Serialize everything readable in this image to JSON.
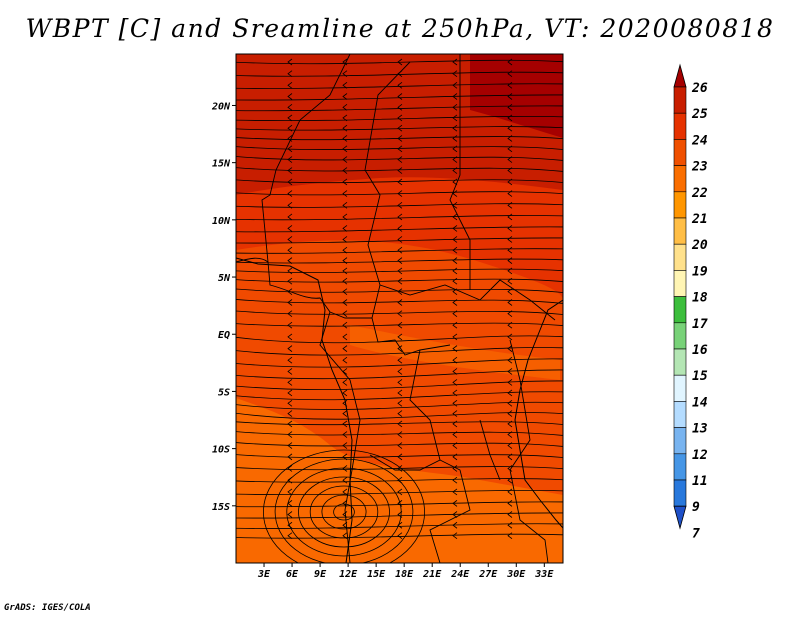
{
  "title": "WBPT [C] and Sreamline at 250hPa, VT: 2020080818",
  "credit": "GrADS: IGES/COLA",
  "map": {
    "lon_range": [
      0,
      35
    ],
    "lat_range": [
      -20,
      24.5
    ],
    "lon_ticks": [
      {
        "value": 3,
        "label": "3E"
      },
      {
        "value": 6,
        "label": "6E"
      },
      {
        "value": 9,
        "label": "9E"
      },
      {
        "value": 12,
        "label": "12E"
      },
      {
        "value": 15,
        "label": "15E"
      },
      {
        "value": 18,
        "label": "18E"
      },
      {
        "value": 21,
        "label": "21E"
      },
      {
        "value": 24,
        "label": "24E"
      },
      {
        "value": 27,
        "label": "27E"
      },
      {
        "value": 30,
        "label": "30E"
      },
      {
        "value": 33,
        "label": "33E"
      }
    ],
    "lat_ticks": [
      {
        "value": 20,
        "label": "20N"
      },
      {
        "value": 15,
        "label": "15N"
      },
      {
        "value": 10,
        "label": "10N"
      },
      {
        "value": 5,
        "label": "5N"
      },
      {
        "value": 0,
        "label": "EQ"
      },
      {
        "value": -5,
        "label": "5S"
      },
      {
        "value": -10,
        "label": "10S"
      },
      {
        "value": -15,
        "label": "15S"
      }
    ]
  },
  "colorbar": {
    "labels": [
      "26",
      "25",
      "24",
      "23",
      "22",
      "21",
      "20",
      "19",
      "18",
      "17",
      "16",
      "15",
      "14",
      "13",
      "12",
      "11",
      "9",
      "7"
    ],
    "colors": [
      "#a50000",
      "#c81e00",
      "#e63200",
      "#f05000",
      "#fa6e00",
      "#ff9600",
      "#ffbe46",
      "#ffe18c",
      "#fff5b4",
      "#3cbe3c",
      "#78d278",
      "#b4e6b4",
      "#e1f5ff",
      "#b4dcff",
      "#78b4f0",
      "#4696e6",
      "#2878dc",
      "#1e50c8"
    ]
  }
}
